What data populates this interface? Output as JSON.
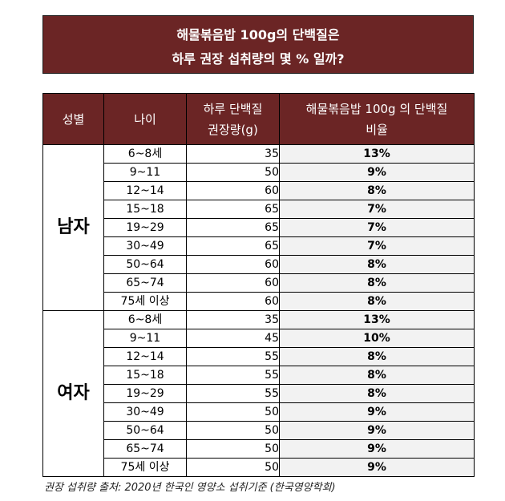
{
  "title": {
    "line1": "해물볶음밥 100g의 단백질은",
    "line2": "하루 권장 섭취량의 몇 % 일까?"
  },
  "headers": {
    "gender": "성별",
    "age": "나이",
    "protein_l1": "하루 단백질",
    "protein_l2": "권장량(g)",
    "ratio_l1": "해물볶음밥 100g 의 단백질",
    "ratio_l2": "비율"
  },
  "groups": [
    {
      "gender": "남자",
      "rows": [
        {
          "age": "6~8세",
          "protein": "35",
          "ratio": "13%"
        },
        {
          "age": "9~11",
          "protein": "50",
          "ratio": "9%"
        },
        {
          "age": "12~14",
          "protein": "60",
          "ratio": "8%"
        },
        {
          "age": "15~18",
          "protein": "65",
          "ratio": "7%"
        },
        {
          "age": "19~29",
          "protein": "65",
          "ratio": "7%"
        },
        {
          "age": "30~49",
          "protein": "65",
          "ratio": "7%"
        },
        {
          "age": "50~64",
          "protein": "60",
          "ratio": "8%"
        },
        {
          "age": "65~74",
          "protein": "60",
          "ratio": "8%"
        },
        {
          "age": "75세 이상",
          "protein": "60",
          "ratio": "8%"
        }
      ]
    },
    {
      "gender": "여자",
      "rows": [
        {
          "age": "6~8세",
          "protein": "35",
          "ratio": "13%"
        },
        {
          "age": "9~11",
          "protein": "45",
          "ratio": "10%"
        },
        {
          "age": "12~14",
          "protein": "55",
          "ratio": "8%"
        },
        {
          "age": "15~18",
          "protein": "55",
          "ratio": "8%"
        },
        {
          "age": "19~29",
          "protein": "55",
          "ratio": "8%"
        },
        {
          "age": "30~49",
          "protein": "50",
          "ratio": "9%"
        },
        {
          "age": "50~64",
          "protein": "50",
          "ratio": "9%"
        },
        {
          "age": "65~74",
          "protein": "50",
          "ratio": "9%"
        },
        {
          "age": "75세 이상",
          "protein": "50",
          "ratio": "9%"
        }
      ]
    }
  ],
  "source": "권장 섭취량 출처: 2020년 한국인 영양소 섭취기준 (한국영양학회)",
  "colors": {
    "header_bg": "#6b2525",
    "ratio_bg": "#f2f2f2"
  }
}
